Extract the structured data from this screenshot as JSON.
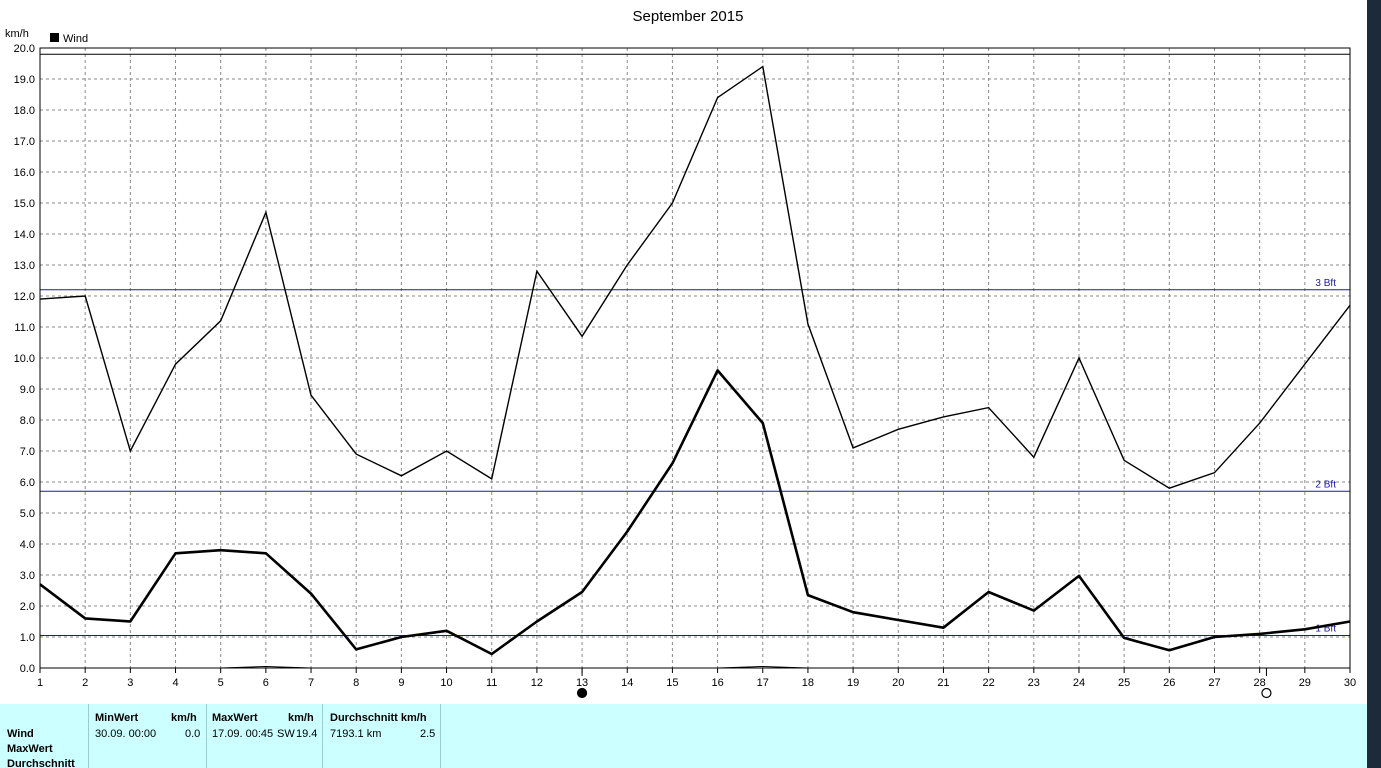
{
  "chart_data": {
    "type": "line",
    "title": "September 2015",
    "ylabel": "km/h",
    "x": [
      1,
      2,
      3,
      4,
      5,
      6,
      7,
      8,
      9,
      10,
      11,
      12,
      13,
      14,
      15,
      16,
      17,
      18,
      19,
      20,
      21,
      22,
      23,
      24,
      25,
      26,
      27,
      28,
      29,
      30
    ],
    "xlim": [
      1,
      30
    ],
    "ylim": [
      0,
      20
    ],
    "y_ticks": [
      "0.0",
      "1.0",
      "2.0",
      "3.0",
      "4.0",
      "5.0",
      "6.0",
      "7.0",
      "8.0",
      "9.0",
      "10.0",
      "11.0",
      "12.0",
      "13.0",
      "14.0",
      "15.0",
      "16.0",
      "17.0",
      "18.0",
      "19.0",
      "20.0"
    ],
    "grid": true,
    "legend": "top-left",
    "series": [
      {
        "name": "Wind",
        "values": [
          2.7,
          1.6,
          1.5,
          3.7,
          3.8,
          3.7,
          2.4,
          0.6,
          1.0,
          1.2,
          0.45,
          1.5,
          2.45,
          4.4,
          6.6,
          9.6,
          7.9,
          2.35,
          1.8,
          1.55,
          1.3,
          2.45,
          1.85,
          2.97,
          0.97,
          0.57,
          1.0,
          1.1,
          1.25,
          1.5
        ]
      },
      {
        "values": [
          11.9,
          12.0,
          7.0,
          9.8,
          11.2,
          14.7,
          8.8,
          6.9,
          6.2,
          7.0,
          6.1,
          12.8,
          10.7,
          13.0,
          15.0,
          18.4,
          19.4,
          11.1,
          7.1,
          7.7,
          8.1,
          8.4,
          6.8,
          10.0,
          6.7,
          5.8,
          6.3,
          7.9,
          9.8,
          11.7
        ]
      }
    ],
    "min_series": {
      "values": [
        0,
        0,
        0,
        0,
        0,
        0.05,
        0,
        0,
        0,
        0,
        0,
        0,
        0,
        0,
        0,
        0,
        0.05,
        0,
        0,
        0,
        0,
        0,
        0,
        0,
        0,
        0,
        0,
        0,
        0,
        0
      ]
    },
    "reference_lines": [
      {
        "label": "1 Bft",
        "value": 1.05
      },
      {
        "label": "2 Bft",
        "value": 5.7
      },
      {
        "label": "3 Bft",
        "value": 12.2
      }
    ],
    "top_line_value": 19.8,
    "moon_markers": [
      {
        "day": 13.0,
        "phase": "full"
      },
      {
        "day": 28.15,
        "phase": "new"
      }
    ]
  },
  "stats": {
    "row_labels": [
      "Wind",
      "MaxWert",
      "Durchschnitt"
    ],
    "min": {
      "header": "MinWert",
      "unit": "km/h",
      "date": "30.09.  00:00",
      "value": "0.0"
    },
    "max": {
      "header": "MaxWert",
      "unit": "km/h",
      "date": "17.09.  00:45",
      "dir": "SW",
      "value": "19.4"
    },
    "avg": {
      "header": "Durchschnitt km/h",
      "distance": "7193.1 km",
      "value": "2.5"
    }
  },
  "colors": {
    "ref_line": "#1a1aa0",
    "grid": "#8a8a8a",
    "panel": "#ccffff"
  }
}
